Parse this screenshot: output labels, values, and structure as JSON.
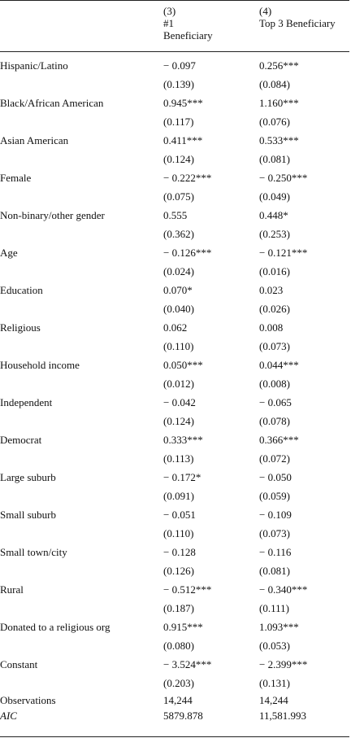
{
  "header": {
    "col3": {
      "num": "(3)",
      "line1": "#1",
      "line2": "Beneficiary"
    },
    "col4": {
      "num": "(4)",
      "line1": "Top 3 Beneficiary"
    }
  },
  "rows": [
    {
      "label": "Hispanic/Latino",
      "c3": "− 0.097",
      "c4": "0.256***",
      "se3": "(0.139)",
      "se4": "(0.084)"
    },
    {
      "label": "Black/African American",
      "c3": "0.945***",
      "c4": "1.160***",
      "se3": "(0.117)",
      "se4": "(0.076)"
    },
    {
      "label": "Asian American",
      "c3": "0.411***",
      "c4": "0.533***",
      "se3": "(0.124)",
      "se4": "(0.081)"
    },
    {
      "label": "Female",
      "c3": "− 0.222***",
      "c4": "− 0.250***",
      "se3": "(0.075)",
      "se4": "(0.049)"
    },
    {
      "label": "Non-binary/other gender",
      "c3": "0.555",
      "c4": "0.448*",
      "se3": "(0.362)",
      "se4": "(0.253)"
    },
    {
      "label": "Age",
      "c3": "− 0.126***",
      "c4": "− 0.121***",
      "se3": "(0.024)",
      "se4": "(0.016)"
    },
    {
      "label": "Education",
      "c3": "0.070*",
      "c4": "0.023",
      "se3": "(0.040)",
      "se4": "(0.026)"
    },
    {
      "label": "Religious",
      "c3": "0.062",
      "c4": "0.008",
      "se3": "(0.110)",
      "se4": "(0.073)"
    },
    {
      "label": "Household income",
      "c3": "0.050***",
      "c4": "0.044***",
      "se3": "(0.012)",
      "se4": "(0.008)"
    },
    {
      "label": "Independent",
      "c3": "− 0.042",
      "c4": "− 0.065",
      "se3": "(0.124)",
      "se4": "(0.078)"
    },
    {
      "label": "Democrat",
      "c3": "0.333***",
      "c4": "0.366***",
      "se3": "(0.113)",
      "se4": "(0.072)"
    },
    {
      "label": "Large suburb",
      "c3": "− 0.172*",
      "c4": "− 0.050",
      "se3": "(0.091)",
      "se4": "(0.059)"
    },
    {
      "label": "Small suburb",
      "c3": "− 0.051",
      "c4": "− 0.109",
      "se3": "(0.110)",
      "se4": "(0.073)"
    },
    {
      "label": "Small town/city",
      "c3": "− 0.128",
      "c4": "− 0.116",
      "se3": "(0.126)",
      "se4": "(0.081)"
    },
    {
      "label": "Rural",
      "c3": "− 0.512***",
      "c4": "− 0.340***",
      "se3": "(0.187)",
      "se4": "(0.111)"
    },
    {
      "label": "Donated to a religious org",
      "c3": "0.915***",
      "c4": "1.093***",
      "se3": "(0.080)",
      "se4": "(0.053)"
    },
    {
      "label": "Constant",
      "c3": "− 3.524***",
      "c4": "− 2.399***",
      "se3": "(0.203)",
      "se4": "(0.131)"
    }
  ],
  "stats": [
    {
      "label": "Observations",
      "c3": "14,244",
      "c4": "14,244"
    },
    {
      "label": "AIC",
      "c3": "5879.878",
      "c4": "11,581.993"
    }
  ]
}
